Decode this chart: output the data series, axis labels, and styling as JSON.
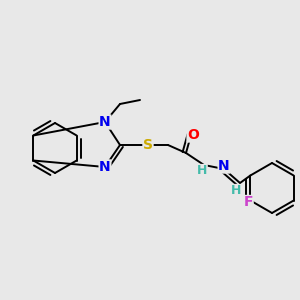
{
  "background_color": "#e8e8e8",
  "bond_color": "#000000",
  "atom_colors": {
    "N": "#0000ee",
    "S": "#ccaa00",
    "O": "#ff0000",
    "F": "#cc44cc",
    "H": "#44bbaa",
    "C": "#000000"
  },
  "figsize": [
    3.0,
    3.0
  ],
  "dpi": 100,
  "lw": 1.4
}
